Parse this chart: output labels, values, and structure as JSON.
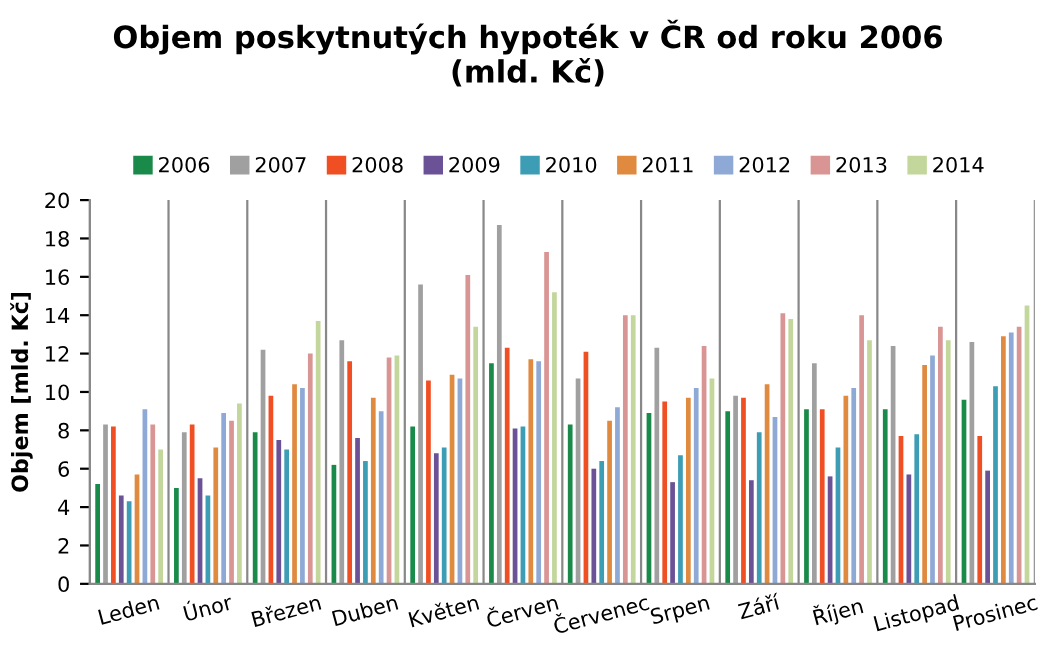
{
  "chart_data": {
    "type": "bar",
    "title": "Objem poskytnutých hypoték v ČR od roku 2006\n(mld. Kč)",
    "ylabel": "Objem [mld. Kč]",
    "categories": [
      "Leden",
      "Únor",
      "Březen",
      "Duben",
      "Květen",
      "Červen",
      "Červenec",
      "Srpen",
      "Září",
      "Říjen",
      "Listopad",
      "Prosinec"
    ],
    "series": [
      {
        "name": "2006",
        "color": "#1a8a4a",
        "values": [
          5.2,
          5.0,
          7.9,
          6.2,
          8.2,
          11.5,
          8.3,
          8.9,
          9.0,
          9.1,
          9.1,
          9.6
        ]
      },
      {
        "name": "2007",
        "color": "#a0a0a0",
        "values": [
          8.3,
          7.9,
          12.2,
          12.7,
          15.6,
          18.7,
          10.7,
          12.3,
          9.8,
          11.5,
          12.4,
          12.6
        ]
      },
      {
        "name": "2008",
        "color": "#f04e23",
        "values": [
          8.2,
          8.3,
          9.8,
          11.6,
          10.6,
          12.3,
          12.1,
          9.5,
          9.7,
          9.1,
          7.7,
          7.7
        ]
      },
      {
        "name": "2009",
        "color": "#6b5196",
        "values": [
          4.6,
          5.5,
          7.5,
          7.6,
          6.8,
          8.1,
          6.0,
          5.3,
          5.4,
          5.6,
          5.7,
          5.9
        ]
      },
      {
        "name": "2010",
        "color": "#3c9db5",
        "values": [
          4.3,
          4.6,
          7.0,
          6.4,
          7.1,
          8.2,
          6.4,
          6.7,
          7.9,
          7.1,
          7.8,
          10.3
        ]
      },
      {
        "name": "2011",
        "color": "#e08a40",
        "values": [
          5.7,
          7.1,
          10.4,
          9.7,
          10.9,
          11.7,
          8.5,
          9.7,
          10.4,
          9.8,
          11.4,
          12.9
        ]
      },
      {
        "name": "2012",
        "color": "#8fa9d6",
        "values": [
          9.1,
          8.9,
          10.2,
          9.0,
          10.7,
          11.6,
          9.2,
          10.2,
          8.7,
          10.2,
          11.9,
          13.1
        ]
      },
      {
        "name": "2013",
        "color": "#d99594",
        "values": [
          8.3,
          8.5,
          12.0,
          11.8,
          16.1,
          17.3,
          14.0,
          12.4,
          14.1,
          14.0,
          13.4,
          13.4
        ]
      },
      {
        "name": "2014",
        "color": "#c3d69b",
        "values": [
          7.0,
          9.4,
          13.7,
          11.9,
          13.4,
          15.2,
          14.0,
          10.7,
          13.8,
          12.7,
          12.7,
          14.5
        ]
      }
    ],
    "ylim": [
      0,
      20
    ],
    "yticks": [
      0,
      2,
      4,
      6,
      8,
      10,
      12,
      14,
      16,
      18,
      20
    ],
    "grid": "x",
    "legend": "top"
  }
}
